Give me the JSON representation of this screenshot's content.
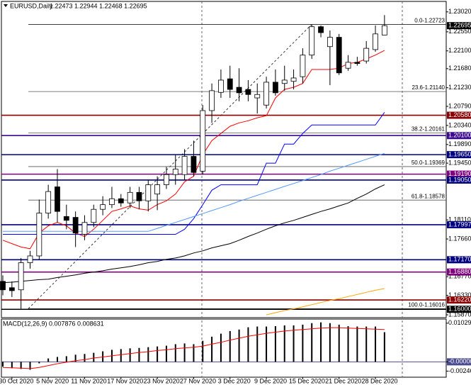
{
  "chart_data": [
    {
      "type": "candlestick",
      "title": "EURUSD,Daily",
      "quote": "1.22473 1.22944 1.22468 1.22695",
      "categories": [
        null,
        "30 Oct 2020",
        null,
        null,
        null,
        "5 Nov 2020",
        null,
        null,
        null,
        "11 Nov 2020",
        null,
        null,
        null,
        "17 Nov 2020",
        null,
        null,
        null,
        "23 Nov 2020",
        null,
        null,
        null,
        "27 Nov 2020",
        null,
        null,
        null,
        "3 Dec 2020",
        null,
        null,
        null,
        "9 Dec 2020",
        null,
        null,
        null,
        "15 Dec 2020",
        null,
        null,
        null,
        "21 Dec 2020",
        null,
        null,
        null,
        "28 Dec 2020",
        null
      ],
      "open": [
        1.1666,
        1.1651,
        1.1646,
        1.171,
        1.1726,
        1.1827,
        1.1889,
        1.1819,
        1.1817,
        1.1777,
        1.1805,
        1.1836,
        1.1847,
        1.1861,
        1.1851,
        1.1876,
        1.1856,
        1.1872,
        1.1894,
        1.1918,
        1.1918,
        1.1961,
        1.1926,
        1.2069,
        1.2112,
        1.2144,
        1.2124,
        1.2119,
        1.2099,
        1.2082,
        1.2136,
        1.2133,
        1.2138,
        1.2149,
        1.22,
        1.2267,
        1.222,
        1.2242,
        1.2169,
        1.2183,
        1.2186,
        1.2213,
        1.22473
      ],
      "high": [
        1.168,
        1.1666,
        1.1721,
        1.1738,
        1.1859,
        1.1894,
        1.1931,
        1.1847,
        1.1831,
        1.1822,
        1.1847,
        1.1867,
        1.1889,
        1.1872,
        1.1889,
        1.1889,
        1.1906,
        1.1914,
        1.1936,
        1.1965,
        1.1978,
        1.1998,
        1.2082,
        1.2133,
        1.2166,
        1.2175,
        1.2169,
        1.2141,
        1.2133,
        1.2149,
        1.2166,
        1.2175,
        1.2166,
        1.2216,
        1.22723,
        1.227,
        1.2258,
        1.225,
        1.22,
        1.2196,
        1.2233,
        1.227,
        1.22944
      ],
      "low": [
        1.1633,
        1.1629,
        1.16016,
        1.1696,
        1.1718,
        1.1814,
        1.1805,
        1.1789,
        1.1747,
        1.1763,
        1.1794,
        1.1822,
        1.1839,
        1.1842,
        1.1839,
        1.1836,
        1.1831,
        1.1834,
        1.1884,
        1.1894,
        1.1906,
        1.1914,
        1.1918,
        1.204,
        1.2099,
        1.2099,
        1.2091,
        1.2091,
        1.2062,
        1.2074,
        1.2104,
        1.2116,
        1.2119,
        1.2133,
        1.2191,
        1.2242,
        1.2129,
        1.2153,
        1.2163,
        1.2175,
        1.218,
        1.2208,
        1.22468
      ],
      "close": [
        1.1646,
        1.1644,
        1.171,
        1.1726,
        1.1827,
        1.1878,
        1.1831,
        1.181,
        1.178,
        1.1805,
        1.1836,
        1.1847,
        1.1861,
        1.1851,
        1.1876,
        1.1856,
        1.1894,
        1.1894,
        1.1918,
        1.1931,
        1.1961,
        1.1923,
        1.2069,
        1.2116,
        1.2141,
        1.2119,
        1.2111,
        1.2107,
        1.2107,
        1.2136,
        1.2111,
        1.2141,
        1.2146,
        1.22,
        1.2267,
        1.2253,
        1.2242,
        1.2158,
        1.2183,
        1.218,
        1.2216,
        1.225,
        1.22695
      ],
      "up_color": "#ffffff",
      "down_color": "#000000",
      "series": [
        {
          "color": "#ff0000",
          "values": [
            1.1763,
            1.1755,
            1.1747,
            1.1743,
            1.178,
            1.1797,
            1.1805,
            1.1797,
            1.178,
            1.1772,
            1.1789,
            1.181,
            1.1831,
            1.1837,
            1.1844,
            1.1837,
            1.1834,
            1.1847,
            1.1856,
            1.1872,
            1.1901,
            1.1914,
            1.1965,
            1.1998,
            1.2015,
            1.2032,
            1.204,
            1.2045,
            1.2052,
            1.2057,
            1.2099,
            1.2119,
            1.2124,
            1.2133,
            1.2166,
            1.2166,
            1.2166,
            1.2169,
            1.218,
            1.2183,
            1.2191,
            1.22,
            1.2211
          ]
        },
        {
          "color": "#0000ff",
          "values": [
            1.1777,
            1.1777,
            1.1777,
            1.1777,
            1.1777,
            1.1777,
            1.1777,
            1.1777,
            1.1777,
            1.1777,
            1.1777,
            1.1777,
            1.1777,
            1.1777,
            1.1777,
            1.1777,
            1.1777,
            1.1777,
            1.1777,
            1.1777,
            1.1789,
            1.1814,
            1.1847,
            1.1881,
            1.1894,
            1.1894,
            1.1894,
            1.1894,
            1.1894,
            1.1945,
            1.1945,
            1.199,
            1.199,
            1.2015,
            1.2035,
            1.2035,
            1.2035,
            1.2035,
            1.2035,
            1.2035,
            1.2035,
            1.2035,
            1.2065
          ]
        },
        {
          "color": "#5599ff",
          "values": [
            1.1784,
            1.1784,
            1.1784,
            1.1784,
            1.1784,
            1.1784,
            1.1784,
            1.1784,
            1.1784,
            1.1784,
            1.1784,
            1.1784,
            1.1784,
            1.1784,
            1.1784,
            1.1784,
            1.1784,
            1.1791,
            1.1798,
            1.1805,
            1.1812,
            1.1819,
            1.1826,
            1.1833,
            1.184,
            1.1847,
            1.1855,
            1.1862,
            1.1869,
            1.1876,
            1.1883,
            1.189,
            1.1897,
            1.1904,
            1.1911,
            1.1918,
            1.1926,
            1.1933,
            1.194,
            1.1947,
            1.1954,
            1.1961,
            1.1968
          ]
        },
        {
          "color": "#000000",
          "values": [
            1.1663,
            1.1664,
            1.1666,
            1.1668,
            1.167,
            1.1671,
            1.1675,
            1.1678,
            1.1681,
            1.1685,
            1.1688,
            1.1691,
            1.1695,
            1.1698,
            1.1701,
            1.1705,
            1.171,
            1.1713,
            1.1718,
            1.1721,
            1.1726,
            1.1733,
            1.1738,
            1.1745,
            1.175,
            1.1755,
            1.1763,
            1.1772,
            1.178,
            1.1789,
            1.1797,
            1.1804,
            1.181,
            1.1817,
            1.1824,
            1.1831,
            1.1837,
            1.1844,
            1.1851,
            1.1862,
            1.1872,
            1.1884,
            1.1894
          ]
        },
        {
          "color": "#ffa500",
          "values": [
            null,
            null,
            null,
            null,
            null,
            null,
            null,
            null,
            null,
            null,
            null,
            null,
            null,
            null,
            null,
            null,
            null,
            null,
            null,
            null,
            null,
            null,
            null,
            null,
            null,
            null,
            null,
            null,
            null,
            1.1587,
            1.1592,
            1.1597,
            1.1601,
            1.1606,
            1.1611,
            1.1616,
            1.1621,
            1.1625,
            1.163,
            1.1635,
            1.164,
            1.1645,
            1.1649
          ]
        }
      ],
      "ylim": [
        1.1582,
        1.2325
      ],
      "yticks": [
        {
          "value": 1.2302,
          "label": "1.23020"
        },
        {
          "value": 1.2255,
          "label": "1.22550"
        },
        {
          "value": 1.221,
          "label": "1.22100"
        },
        {
          "value": 1.2168,
          "label": "1.21680"
        },
        {
          "value": 1.2123,
          "label": "1.21230"
        },
        {
          "value": 1.2079,
          "label": "1.20790"
        },
        {
          "value": 1.2034,
          "label": "1.20340"
        },
        {
          "value": 1.1989,
          "label": "1.19890"
        },
        {
          "value": 1.1945,
          "label": "1.19450"
        },
        {
          "value": 1.1811,
          "label": "1.18110"
        },
        {
          "value": 1.1766,
          "label": "1.17660"
        },
        {
          "value": 1.1677,
          "label": "1.16770"
        },
        {
          "value": 1.1633,
          "label": "1.16330"
        },
        {
          "value": 1.1587,
          "label": "1.15870"
        }
      ],
      "levels": [
        {
          "value": 1.2058,
          "label": "1.20580",
          "color": "#8b0000"
        },
        {
          "value": 1.201,
          "label": "1.20100",
          "color": "#3b0a8f"
        },
        {
          "value": 1.1965,
          "label": "1.19650",
          "color": "#000080"
        },
        {
          "value": 1.1919,
          "label": "1.19190",
          "color": "#800080"
        },
        {
          "value": 1.1905,
          "label": "1.19050",
          "color": "#000080"
        },
        {
          "value": 1.17997,
          "label": "1.17997",
          "color": "#000080"
        },
        {
          "value": 1.1717,
          "label": "1.17170",
          "color": "#000080"
        },
        {
          "value": 1.1688,
          "label": "1.16880",
          "color": "#800080"
        },
        {
          "value": 1.1622,
          "label": "1.16220",
          "color": "#8b0000"
        },
        {
          "value": 1.16,
          "label": "1.16000",
          "color": "#000000"
        }
      ],
      "fibonacci": [
        {
          "value": 1.22723,
          "label": "0.0-1.22723"
        },
        {
          "value": 1.2114,
          "label": "23.6-1.21140"
        },
        {
          "value": 1.20161,
          "label": "38.2-1.20161"
        },
        {
          "value": 1.19369,
          "label": "50.0-1.19369"
        },
        {
          "value": 1.18578,
          "label": "61.8-1.18578"
        },
        {
          "value": 1.16016,
          "label": "100.0-1.16016"
        }
      ],
      "current_price": {
        "value": 1.22695,
        "label": "1.22695"
      }
    },
    {
      "type": "macd",
      "title": "MACD(12,26,9) 0.007876 0.008631",
      "color": "#000000",
      "values": [
        -0.0013,
        -0.0017,
        -0.0019,
        -0.0021,
        -0.0004,
        0.0009,
        0.0013,
        0.0015,
        0.0019,
        0.0021,
        0.0024,
        0.0028,
        0.0032,
        0.0034,
        0.0036,
        0.0037,
        0.0039,
        0.0041,
        0.0043,
        0.0047,
        0.0049,
        0.0047,
        0.0056,
        0.0067,
        0.0075,
        0.0082,
        0.0086,
        0.0092,
        0.0094,
        0.0094,
        0.0095,
        0.0097,
        0.0097,
        0.0099,
        0.0103,
        0.0105,
        0.0103,
        0.0099,
        0.0095,
        0.0094,
        0.0094,
        0.0094,
        0.0079
      ],
      "series": [
        {
          "color": "#ff0000",
          "values": [
            -0.0015,
            -0.0016,
            -0.0017,
            -0.0018,
            -0.0015,
            -0.001,
            -0.0005,
            -0.0001,
            0.0003,
            0.0006,
            0.001,
            0.0013,
            0.0016,
            0.0019,
            0.0022,
            0.0025,
            0.0027,
            0.003,
            0.0032,
            0.0035,
            0.0037,
            0.0039,
            0.0042,
            0.0047,
            0.0052,
            0.0058,
            0.0063,
            0.0068,
            0.0072,
            0.0076,
            0.0079,
            0.0082,
            0.0084,
            0.0086,
            0.0088,
            0.009,
            0.0091,
            0.0091,
            0.009,
            0.0089,
            0.0088,
            0.0087,
            0.0086
          ]
        }
      ],
      "ylim": [
        -0.0039,
        0.0112
      ],
      "yticks": [
        0.01029,
        {
          "value": 0,
          "label": "-0.000000"
        },
        -0.002465
      ],
      "zero_line_color": "#4b4b8f"
    }
  ]
}
